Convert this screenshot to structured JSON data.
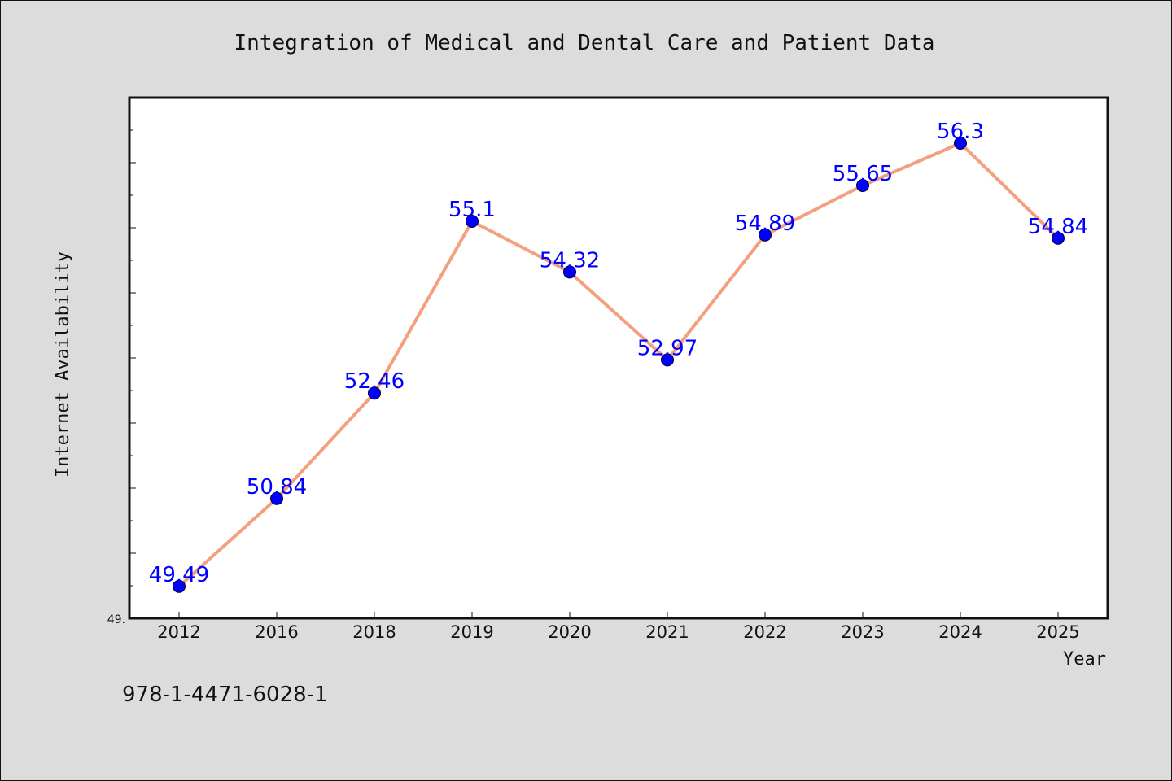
{
  "chart_data": {
    "type": "line",
    "title": "Integration of Medical and Dental Care and Patient Data",
    "xlabel": "Year",
    "ylabel": "Internet Availability",
    "categories": [
      "2012",
      "2016",
      "2018",
      "2019",
      "2020",
      "2021",
      "2022",
      "2023",
      "2024",
      "2025"
    ],
    "series": [
      {
        "values": [
          49.49,
          50.84,
          52.46,
          55.1,
          54.32,
          52.97,
          54.89,
          55.65,
          56.3,
          54.84
        ]
      }
    ],
    "data_labels": [
      "49.49",
      "50.84",
      "52.46",
      "55.1",
      "54.32",
      "52.97",
      "54.89",
      "55.65",
      "56.3",
      "54.84"
    ],
    "ylim": [
      49.0,
      57.0
    ],
    "y_min_label": "49.",
    "grid": false,
    "legend": "none",
    "line_color": "#f4a07e",
    "marker_color": "#0000ff",
    "label_color": "#0000ff"
  },
  "footer": {
    "isbn": "978-1-4471-6028-1"
  }
}
